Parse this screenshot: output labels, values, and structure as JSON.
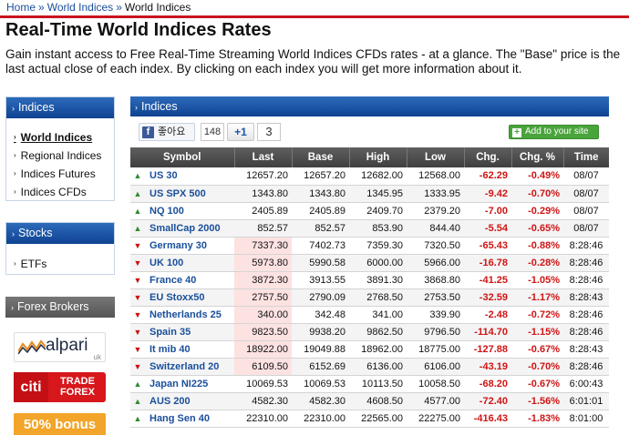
{
  "breadcrumb": {
    "home": "Home",
    "section": "World Indices",
    "current": "World Indices",
    "separator": "»"
  },
  "page": {
    "title": "Real-Time World Indices Rates",
    "intro": "Gain instant access to Free Real-Time Streaming World Indices CFDs rates - at a glance. The \"Base\" price is the last actual close of each index. By clicking on each index you will get more information about it."
  },
  "sidebar": {
    "indices": {
      "title": "Indices",
      "items": [
        "World Indices",
        "Regional Indices",
        "Indices Futures",
        "Indices CFDs"
      ]
    },
    "stocks": {
      "title": "Stocks",
      "items": [
        "ETFs"
      ]
    },
    "brokers": {
      "title": "Forex Brokers",
      "alpari": {
        "name": "alpari",
        "sub": "uk"
      },
      "citi": {
        "mark": "citi",
        "line1": "TRADE",
        "line2": "FOREX"
      },
      "bonus": "50% bonus"
    }
  },
  "main": {
    "title": "Indices",
    "social": {
      "fb_label": "좋아요",
      "fb_icon": "f",
      "fb_count": "148",
      "gplus_label": "+1",
      "gplus_count": "3"
    },
    "add_site": "Add to your site"
  },
  "table": {
    "columns": [
      "Symbol",
      "Last",
      "Base",
      "High",
      "Low",
      "Chg.",
      "Chg. %",
      "Time"
    ],
    "rows": [
      {
        "dir": "up",
        "symbol": "US 30",
        "last": "12657.20",
        "base": "12657.20",
        "high": "12682.00",
        "low": "12568.00",
        "chg": "-62.29",
        "chg_pct": "-0.49%",
        "time": "08/07",
        "hl": false
      },
      {
        "dir": "up",
        "symbol": "US SPX 500",
        "last": "1343.80",
        "base": "1343.80",
        "high": "1345.95",
        "low": "1333.95",
        "chg": "-9.42",
        "chg_pct": "-0.70%",
        "time": "08/07",
        "hl": false
      },
      {
        "dir": "up",
        "symbol": "NQ 100",
        "last": "2405.89",
        "base": "2405.89",
        "high": "2409.70",
        "low": "2379.20",
        "chg": "-7.00",
        "chg_pct": "-0.29%",
        "time": "08/07",
        "hl": false
      },
      {
        "dir": "up",
        "symbol": "SmallCap 2000",
        "last": "852.57",
        "base": "852.57",
        "high": "853.90",
        "low": "844.40",
        "chg": "-5.54",
        "chg_pct": "-0.65%",
        "time": "08/07",
        "hl": false
      },
      {
        "dir": "down",
        "symbol": "Germany 30",
        "last": "7337.30",
        "base": "7402.73",
        "high": "7359.30",
        "low": "7320.50",
        "chg": "-65.43",
        "chg_pct": "-0.88%",
        "time": "8:28:46",
        "hl": true
      },
      {
        "dir": "down",
        "symbol": "UK 100",
        "last": "5973.80",
        "base": "5990.58",
        "high": "6000.00",
        "low": "5966.00",
        "chg": "-16.78",
        "chg_pct": "-0.28%",
        "time": "8:28:46",
        "hl": true
      },
      {
        "dir": "down",
        "symbol": "France 40",
        "last": "3872.30",
        "base": "3913.55",
        "high": "3891.30",
        "low": "3868.80",
        "chg": "-41.25",
        "chg_pct": "-1.05%",
        "time": "8:28:46",
        "hl": true
      },
      {
        "dir": "down",
        "symbol": "EU Stoxx50",
        "last": "2757.50",
        "base": "2790.09",
        "high": "2768.50",
        "low": "2753.50",
        "chg": "-32.59",
        "chg_pct": "-1.17%",
        "time": "8:28:43",
        "hl": true
      },
      {
        "dir": "down",
        "symbol": "Netherlands 25",
        "last": "340.00",
        "base": "342.48",
        "high": "341.00",
        "low": "339.90",
        "chg": "-2.48",
        "chg_pct": "-0.72%",
        "time": "8:28:46",
        "hl": true
      },
      {
        "dir": "down",
        "symbol": "Spain 35",
        "last": "9823.50",
        "base": "9938.20",
        "high": "9862.50",
        "low": "9796.50",
        "chg": "-114.70",
        "chg_pct": "-1.15%",
        "time": "8:28:46",
        "hl": true
      },
      {
        "dir": "down",
        "symbol": "It mib 40",
        "last": "18922.00",
        "base": "19049.88",
        "high": "18962.00",
        "low": "18775.00",
        "chg": "-127.88",
        "chg_pct": "-0.67%",
        "time": "8:28:43",
        "hl": true
      },
      {
        "dir": "down",
        "symbol": "Switzerland 20",
        "last": "6109.50",
        "base": "6152.69",
        "high": "6136.00",
        "low": "6106.00",
        "chg": "-43.19",
        "chg_pct": "-0.70%",
        "time": "8:28:46",
        "hl": true
      },
      {
        "dir": "up",
        "symbol": "Japan NI225",
        "last": "10069.53",
        "base": "10069.53",
        "high": "10113.50",
        "low": "10058.50",
        "chg": "-68.20",
        "chg_pct": "-0.67%",
        "time": "6:00:43",
        "hl": false
      },
      {
        "dir": "up",
        "symbol": "AUS 200",
        "last": "4582.30",
        "base": "4582.30",
        "high": "4608.50",
        "low": "4577.00",
        "chg": "-72.40",
        "chg_pct": "-1.56%",
        "time": "6:01:01",
        "hl": false
      },
      {
        "dir": "up",
        "symbol": "Hang Sen 40",
        "last": "22310.00",
        "base": "22310.00",
        "high": "22565.00",
        "low": "22275.00",
        "chg": "-416.43",
        "chg_pct": "-1.83%",
        "time": "8:01:00",
        "hl": false
      }
    ]
  },
  "colors": {
    "brand_red": "#c8141e",
    "header_blue": "#0f4291",
    "link_blue": "#1a4f9b",
    "up_green": "#2e8b2e",
    "down_red": "#cc1111",
    "highlight": "#fde2e2"
  },
  "icons": {
    "up": "triangle-up-icon",
    "down": "triangle-down-icon",
    "bullet": "bullet-arrow-icon"
  }
}
